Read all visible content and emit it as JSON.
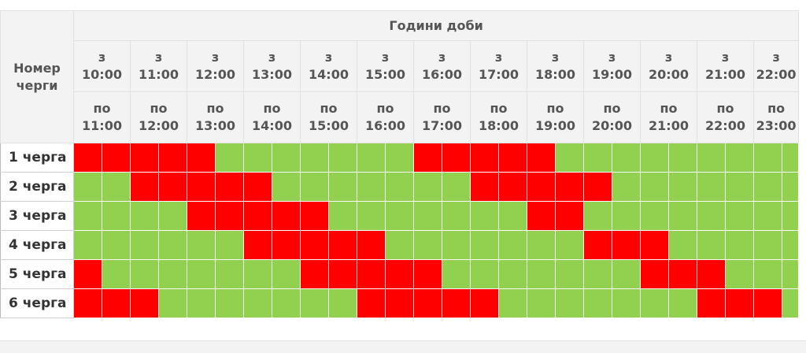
{
  "header": {
    "group_label": "Номер черги",
    "hours_title": "Години доби",
    "from_prefix": "з",
    "to_prefix": "по"
  },
  "slots": [
    {
      "from": "10:00",
      "to": "11:00"
    },
    {
      "from": "11:00",
      "to": "12:00"
    },
    {
      "from": "12:00",
      "to": "13:00"
    },
    {
      "from": "13:00",
      "to": "14:00"
    },
    {
      "from": "14:00",
      "to": "15:00"
    },
    {
      "from": "15:00",
      "to": "16:00"
    },
    {
      "from": "16:00",
      "to": "17:00"
    },
    {
      "from": "17:00",
      "to": "18:00"
    },
    {
      "from": "18:00",
      "to": "19:00"
    },
    {
      "from": "19:00",
      "to": "20:00"
    },
    {
      "from": "20:00",
      "to": "21:00"
    },
    {
      "from": "21:00",
      "to": "22:00"
    },
    {
      "from": "22:00",
      "to": "23:00"
    }
  ],
  "groups": [
    {
      "label": "1 черга",
      "outage": [
        1,
        1,
        1,
        1,
        1,
        0,
        0,
        0,
        0,
        0,
        0,
        0,
        1,
        1,
        1,
        1,
        1,
        0,
        0,
        0,
        0,
        0,
        0,
        0,
        0,
        0
      ]
    },
    {
      "label": "2 черга",
      "outage": [
        0,
        0,
        1,
        1,
        1,
        1,
        1,
        0,
        0,
        0,
        0,
        0,
        0,
        0,
        1,
        1,
        1,
        1,
        1,
        0,
        0,
        0,
        0,
        0,
        0,
        0
      ]
    },
    {
      "label": "3 черга",
      "outage": [
        0,
        0,
        0,
        0,
        1,
        1,
        1,
        1,
        1,
        0,
        0,
        0,
        0,
        0,
        0,
        0,
        1,
        1,
        0,
        0,
        0,
        0,
        0,
        0,
        0,
        0
      ]
    },
    {
      "label": "4 черга",
      "outage": [
        0,
        0,
        0,
        0,
        0,
        0,
        1,
        1,
        1,
        1,
        1,
        0,
        0,
        0,
        0,
        0,
        0,
        0,
        1,
        1,
        1,
        0,
        0,
        0,
        0,
        0
      ]
    },
    {
      "label": "5 черга",
      "outage": [
        1,
        0,
        0,
        0,
        0,
        0,
        0,
        0,
        1,
        1,
        1,
        1,
        1,
        0,
        0,
        0,
        0,
        0,
        0,
        0,
        1,
        1,
        1,
        0,
        0,
        0
      ]
    },
    {
      "label": "6 черга",
      "outage": [
        1,
        1,
        1,
        0,
        0,
        0,
        0,
        0,
        0,
        0,
        1,
        1,
        1,
        1,
        1,
        0,
        0,
        0,
        0,
        0,
        0,
        0,
        1,
        1,
        1,
        0
      ]
    }
  ],
  "colors": {
    "outage": "#ff0000",
    "power_on": "#92d050",
    "header_bg": "#f3f3f3",
    "header_text": "#555555"
  }
}
